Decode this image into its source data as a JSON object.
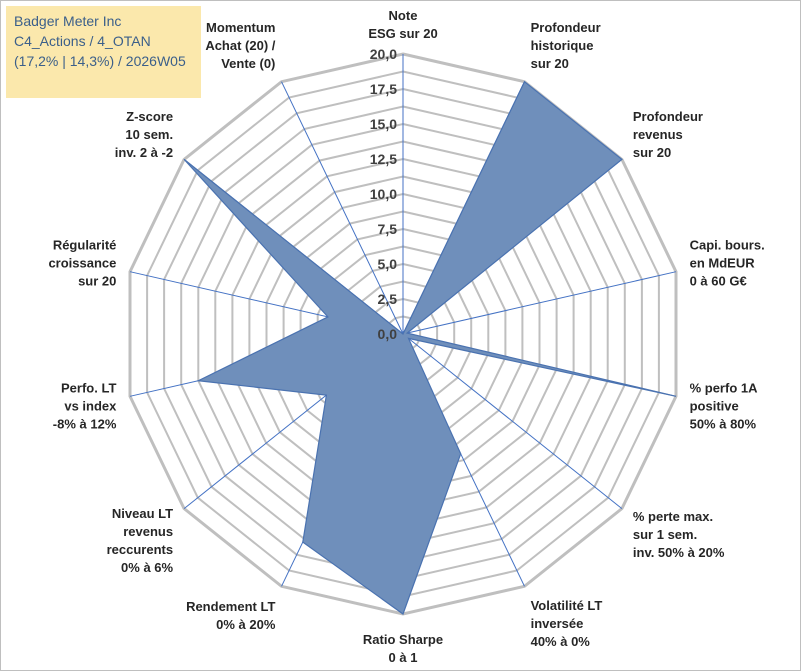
{
  "header": {
    "line1": "Badger Meter Inc",
    "line2": "C4_Actions / 4_OTAN",
    "line3": "(17,2% | 14,3%) / 2026W05"
  },
  "chart_data": {
    "type": "radar",
    "title": "Badger Meter Inc",
    "rmin": 0,
    "rmax": 20,
    "ticks": [
      "0,0",
      "2,5",
      "5,0",
      "7,5",
      "10,0",
      "12,5",
      "15,0",
      "17,5",
      "20,0"
    ],
    "axes": [
      {
        "label": [
          "Note",
          "ESG sur 20"
        ],
        "value": 0
      },
      {
        "label": [
          "Profondeur",
          "historique",
          "sur 20"
        ],
        "value": 20
      },
      {
        "label": [
          "Profondeur",
          "revenus",
          "sur 20"
        ],
        "value": 20
      },
      {
        "label": [
          "Capi. bours.",
          "en MdEUR",
          "0 à 60 G€"
        ],
        "value": 0.3
      },
      {
        "label": [
          "% perfo 1A",
          "positive",
          "50% à 80%"
        ],
        "value": 20
      },
      {
        "label": [
          "% perte max.",
          "sur 1 sem.",
          "inv. 50% à 20%"
        ],
        "value": 0.5
      },
      {
        "label": [
          "Volatilité LT",
          "inversée",
          "40% à 0%"
        ],
        "value": 9.5
      },
      {
        "label": [
          "Ratio Sharpe",
          "0 à 1"
        ],
        "value": 20
      },
      {
        "label": [
          "Rendement LT",
          "0% à 20%"
        ],
        "value": 16.5
      },
      {
        "label": [
          "Niveau LT",
          "revenus",
          "reccurents",
          "0% à 6%"
        ],
        "value": 7
      },
      {
        "label": [
          "Perfo. LT",
          "vs index",
          "-8% à 12%"
        ],
        "value": 15
      },
      {
        "label": [
          "Régularité",
          "croissance",
          "sur 20"
        ],
        "value": 5.5
      },
      {
        "label": [
          "Z-score",
          "10 sem.",
          "inv. 2 à -2"
        ],
        "value": 20
      },
      {
        "label": [
          "Momentum",
          "Achat (20) /",
          "Vente (0)"
        ],
        "value": 0
      }
    ],
    "series": [
      {
        "name": "Badger Meter Inc",
        "fill": "#6f8fbb",
        "stroke": "#4a72b0"
      }
    ],
    "grid_color": "#bfbfbf",
    "spoke_color": "#4472c4"
  }
}
